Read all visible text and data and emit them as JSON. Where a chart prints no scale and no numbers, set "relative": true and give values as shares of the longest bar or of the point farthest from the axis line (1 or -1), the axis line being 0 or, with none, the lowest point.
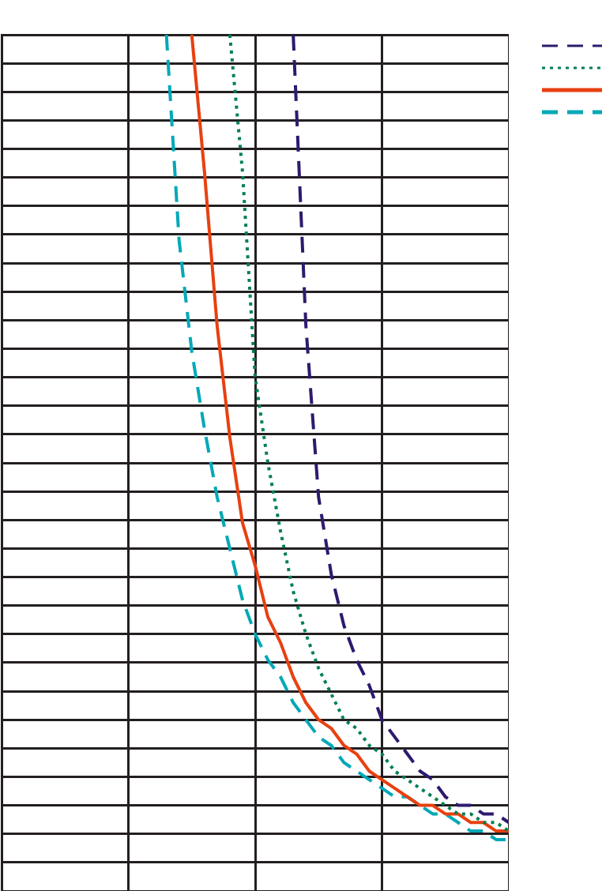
{
  "chart_data": {
    "type": "line",
    "relative": true,
    "grid": true,
    "marker": "none",
    "categories": [
      null,
      null,
      null,
      null,
      null,
      null,
      null,
      null,
      null,
      null,
      null,
      null,
      null,
      null,
      null,
      null,
      null,
      null,
      null,
      null,
      null,
      null,
      null,
      null,
      null,
      null,
      null,
      null,
      null,
      null,
      null,
      null,
      null,
      null,
      null,
      null,
      null,
      null,
      null,
      null,
      null
    ],
    "series": [
      {
        "color": "#2e1a6e",
        "line_style": "dashed",
        "values": [
          null,
          null,
          null,
          null,
          null,
          null,
          null,
          null,
          null,
          null,
          null,
          null,
          null,
          null,
          null,
          null,
          null,
          null,
          null,
          null,
          null,
          null,
          null,
          1.0,
          0.66,
          0.46,
          0.37,
          0.31,
          0.27,
          0.24,
          0.2,
          0.18,
          0.16,
          0.14,
          0.13,
          0.11,
          0.1,
          0.1,
          0.09,
          0.09,
          0.08
        ]
      },
      {
        "color": "#008050",
        "line_style": "dotted",
        "values": [
          null,
          null,
          null,
          null,
          null,
          null,
          null,
          null,
          null,
          null,
          null,
          null,
          null,
          null,
          null,
          null,
          null,
          null,
          1.0,
          0.84,
          0.6,
          0.5,
          0.42,
          0.35,
          0.3,
          0.26,
          0.23,
          0.2,
          0.19,
          0.17,
          0.16,
          0.14,
          0.13,
          0.12,
          0.11,
          0.1,
          0.09,
          0.09,
          0.08,
          0.08,
          0.07
        ]
      },
      {
        "color": "#e84010",
        "line_style": "solid",
        "values": [
          null,
          null,
          null,
          null,
          null,
          null,
          null,
          null,
          null,
          null,
          null,
          null,
          null,
          null,
          null,
          1.0,
          0.84,
          0.66,
          0.53,
          0.43,
          0.38,
          0.32,
          0.29,
          0.25,
          0.22,
          0.2,
          0.19,
          0.17,
          0.16,
          0.14,
          0.13,
          0.12,
          0.11,
          0.1,
          0.1,
          0.09,
          0.09,
          0.08,
          0.08,
          0.07,
          0.07
        ]
      },
      {
        "color": "#00a8b8",
        "line_style": "dashed",
        "values": [
          null,
          null,
          null,
          null,
          null,
          null,
          null,
          null,
          null,
          null,
          null,
          null,
          null,
          1.0,
          0.76,
          0.63,
          0.54,
          0.46,
          0.4,
          0.34,
          0.3,
          0.27,
          0.25,
          0.22,
          0.2,
          0.18,
          0.17,
          0.15,
          0.14,
          0.13,
          0.12,
          0.11,
          0.11,
          0.1,
          0.09,
          0.09,
          0.08,
          0.07,
          0.07,
          0.06,
          0.06
        ]
      }
    ]
  }
}
